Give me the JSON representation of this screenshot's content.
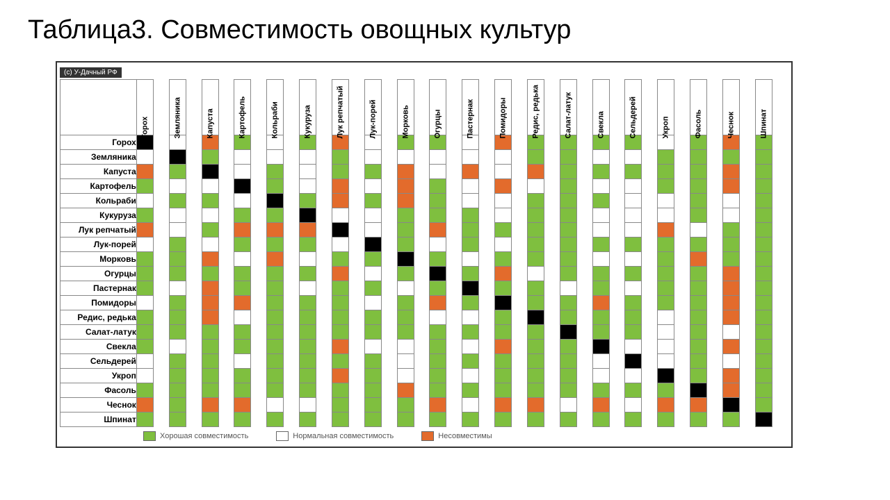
{
  "title": "Таблица3. Совместимость овощных культур",
  "copyright": "(с) У-Дачный РФ",
  "colors": {
    "good": "#7fbf3f",
    "normal": "#ffffff",
    "bad": "#e36b2c",
    "diagonal": "#000000",
    "grid": "#888888",
    "border": "#333333"
  },
  "legend": {
    "good": "Хорошая совместимость",
    "normal": "Нормальная совместимость",
    "bad": "Несовместимы"
  },
  "plants": [
    "Горох",
    "Земляника",
    "Капуста",
    "Картофель",
    "Кольраби",
    "Кукуруза",
    "Лук репчатый",
    "Лук-порей",
    "Морковь",
    "Огурцы",
    "Пастернак",
    "Помидоры",
    "Редис, редька",
    "Салат-латук",
    "Свекла",
    "Сельдерей",
    "Укроп",
    "Фасоль",
    "Чеснок",
    "Шпинат"
  ],
  "matrix_note": "D=диагональ, G=good (зелёный), B=bad (оранжевый), .=normal (белый)",
  "matrix": [
    "D.BG.GB.GG.BGGGG.GBG",
    ".DG...G.....GG..GGGG",
    "BGD.G.GGB.B.BGGGGGBG",
    "G..DG.B.BG.B.G..GGBG",
    ".GG.DGBGBG..GGG..G.G",
    "G..GGD..GGG.GG...G.G",
    "B.GBBBD.GBGGGG..B.GG",
    ".G.GGG.DG.G.GGGGGGGG",
    "GGB.B.GGDG.GGG..GBGG",
    "GGGGGGB.GDGB.GGGGGBG",
    "G.BGG.GG.GDGG.G.GGBG",
    ".GBBGGG.GBGDGGBGGGBG",
    "GGB.GGGGG..GDGGG.GBG",
    "GGGGGGGGGGGGGDGG.G.G",
    "G.GGGGB..G.BGGD..GBG",
    ".GG.GGGG.GGGGG.D.G.G",
    ".GGGGGBG.G.GGG..DGBG",
    "GGGGGGGGBGGGGGGGGDBG",
    "BGBB..GGGB.BB.B.BBDG",
    "GGGGGGGGGGGGGGGGGGGD"
  ]
}
